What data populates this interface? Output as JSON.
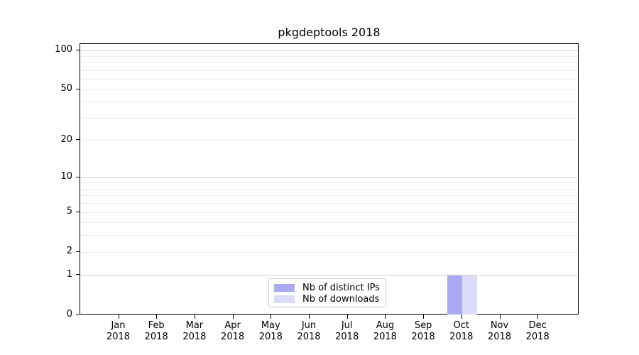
{
  "title": "pkgdeptools 2018",
  "chart_data": {
    "type": "bar",
    "title": "pkgdeptools 2018",
    "categories": [
      "Jan",
      "Feb",
      "Mar",
      "Apr",
      "May",
      "Jun",
      "Jul",
      "Aug",
      "Sep",
      "Oct",
      "Nov",
      "Dec"
    ],
    "category_year": "2018",
    "series": [
      {
        "name": "Nb of distinct IPs",
        "color": "#aaaaf2",
        "values": [
          0,
          0,
          0,
          0,
          0,
          0,
          0,
          0,
          0,
          1,
          0,
          0
        ]
      },
      {
        "name": "Nb of downloads",
        "color": "#dcdcf8",
        "values": [
          0,
          0,
          0,
          0,
          0,
          0,
          0,
          0,
          0,
          1,
          0,
          0
        ]
      }
    ],
    "xlabel": "",
    "ylabel": "",
    "yscale": "log1p",
    "ylim": [
      0,
      112
    ],
    "yticks": [
      0,
      1,
      2,
      5,
      10,
      20,
      50,
      100
    ],
    "major_grid_values": [
      1,
      10,
      100
    ],
    "minor_grid_values": [
      2,
      3,
      4,
      5,
      6,
      7,
      8,
      9,
      20,
      30,
      40,
      50,
      60,
      70,
      80,
      90
    ],
    "grid": true,
    "legend_position": "bottom-center"
  },
  "colors": {
    "major_grid": "#d2d2d2",
    "minor_grid": "#ededed",
    "spine": "#000000",
    "text": "#000000",
    "background": "#ffffff",
    "legend_border": "#cccccc"
  }
}
